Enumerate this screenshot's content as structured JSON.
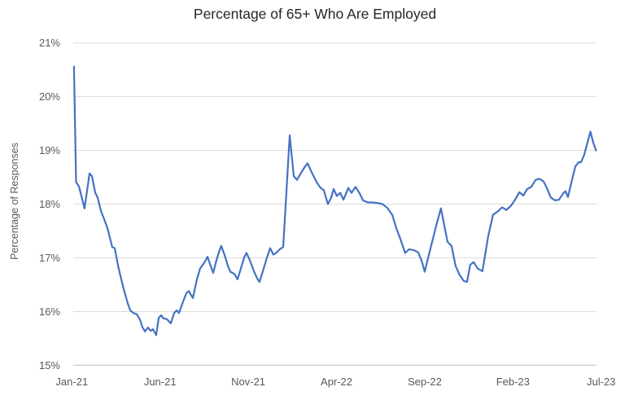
{
  "chart_data": {
    "type": "line",
    "title": "Percentage of 65+ Who Are Employed",
    "xlabel": "",
    "ylabel": "Percentage of Responses",
    "ylim": [
      15,
      21
    ],
    "xlim_months": [
      0,
      30
    ],
    "grid": "horizontal",
    "legend": "none",
    "colors": {
      "line": "#4472C4",
      "gridline": "#d9d9d9",
      "axis_line": "#bfbfbf",
      "tick_text": "#595959",
      "title_text": "#262626"
    },
    "y_ticks": [
      {
        "value": 15,
        "label": "15%"
      },
      {
        "value": 16,
        "label": "16%"
      },
      {
        "value": 17,
        "label": "17%"
      },
      {
        "value": 18,
        "label": "18%"
      },
      {
        "value": 19,
        "label": "19%"
      },
      {
        "value": 20,
        "label": "20%"
      },
      {
        "value": 21,
        "label": "21%"
      }
    ],
    "x_ticks": [
      {
        "month": 0,
        "label": "Jan-21"
      },
      {
        "month": 5,
        "label": "Jun-21"
      },
      {
        "month": 10,
        "label": "Nov-21"
      },
      {
        "month": 15,
        "label": "Apr-22"
      },
      {
        "month": 20,
        "label": "Sep-22"
      },
      {
        "month": 25,
        "label": "Feb-23"
      },
      {
        "month": 30,
        "label": "Jul-23"
      }
    ],
    "series": [
      {
        "x_unit": "months_since_Jan_2021",
        "y_unit": "percent",
        "points": [
          [
            0.12,
            20.56
          ],
          [
            0.24,
            18.41
          ],
          [
            0.4,
            18.33
          ],
          [
            0.72,
            17.92
          ],
          [
            1.0,
            18.57
          ],
          [
            1.14,
            18.52
          ],
          [
            1.32,
            18.22
          ],
          [
            1.46,
            18.12
          ],
          [
            1.65,
            17.87
          ],
          [
            1.83,
            17.72
          ],
          [
            2.02,
            17.55
          ],
          [
            2.15,
            17.38
          ],
          [
            2.29,
            17.2
          ],
          [
            2.43,
            17.18
          ],
          [
            2.62,
            16.85
          ],
          [
            2.8,
            16.6
          ],
          [
            2.94,
            16.42
          ],
          [
            3.17,
            16.15
          ],
          [
            3.31,
            16.02
          ],
          [
            3.49,
            15.97
          ],
          [
            3.68,
            15.95
          ],
          [
            3.86,
            15.85
          ],
          [
            4.0,
            15.71
          ],
          [
            4.14,
            15.63
          ],
          [
            4.32,
            15.7
          ],
          [
            4.46,
            15.64
          ],
          [
            4.6,
            15.67
          ],
          [
            4.78,
            15.56
          ],
          [
            4.92,
            15.88
          ],
          [
            5.06,
            15.93
          ],
          [
            5.2,
            15.87
          ],
          [
            5.38,
            15.86
          ],
          [
            5.61,
            15.78
          ],
          [
            5.8,
            15.97
          ],
          [
            5.94,
            16.02
          ],
          [
            6.07,
            15.97
          ],
          [
            6.3,
            16.18
          ],
          [
            6.49,
            16.34
          ],
          [
            6.63,
            16.38
          ],
          [
            6.86,
            16.25
          ],
          [
            7.09,
            16.6
          ],
          [
            7.27,
            16.8
          ],
          [
            7.55,
            16.93
          ],
          [
            7.69,
            17.02
          ],
          [
            7.83,
            16.88
          ],
          [
            8.01,
            16.72
          ],
          [
            8.19,
            16.95
          ],
          [
            8.38,
            17.15
          ],
          [
            8.47,
            17.22
          ],
          [
            8.66,
            17.05
          ],
          [
            8.84,
            16.85
          ],
          [
            8.98,
            16.74
          ],
          [
            9.21,
            16.7
          ],
          [
            9.39,
            16.6
          ],
          [
            9.58,
            16.8
          ],
          [
            9.76,
            17.0
          ],
          [
            9.9,
            17.09
          ],
          [
            10.09,
            16.95
          ],
          [
            10.32,
            16.75
          ],
          [
            10.5,
            16.62
          ],
          [
            10.64,
            16.55
          ],
          [
            10.87,
            16.8
          ],
          [
            11.05,
            17.0
          ],
          [
            11.24,
            17.18
          ],
          [
            11.42,
            17.06
          ],
          [
            11.61,
            17.1
          ],
          [
            11.79,
            17.16
          ],
          [
            11.98,
            17.2
          ],
          [
            12.35,
            19.28
          ],
          [
            12.58,
            18.52
          ],
          [
            12.76,
            18.45
          ],
          [
            12.99,
            18.58
          ],
          [
            13.18,
            18.68
          ],
          [
            13.36,
            18.76
          ],
          [
            13.55,
            18.62
          ],
          [
            13.73,
            18.5
          ],
          [
            13.92,
            18.38
          ],
          [
            14.1,
            18.3
          ],
          [
            14.28,
            18.26
          ],
          [
            14.51,
            18.0
          ],
          [
            14.7,
            18.12
          ],
          [
            14.84,
            18.28
          ],
          [
            15.02,
            18.15
          ],
          [
            15.21,
            18.21
          ],
          [
            15.39,
            18.08
          ],
          [
            15.67,
            18.3
          ],
          [
            15.85,
            18.21
          ],
          [
            16.08,
            18.32
          ],
          [
            16.31,
            18.2
          ],
          [
            16.5,
            18.07
          ],
          [
            16.77,
            18.03
          ],
          [
            17.05,
            18.03
          ],
          [
            17.33,
            18.02
          ],
          [
            17.6,
            18.0
          ],
          [
            17.88,
            17.93
          ],
          [
            18.16,
            17.8
          ],
          [
            18.39,
            17.55
          ],
          [
            18.62,
            17.35
          ],
          [
            18.89,
            17.09
          ],
          [
            19.12,
            17.16
          ],
          [
            19.4,
            17.14
          ],
          [
            19.63,
            17.1
          ],
          [
            19.82,
            16.95
          ],
          [
            20.0,
            16.74
          ],
          [
            20.23,
            17.05
          ],
          [
            20.46,
            17.35
          ],
          [
            20.69,
            17.65
          ],
          [
            20.92,
            17.92
          ],
          [
            21.11,
            17.6
          ],
          [
            21.29,
            17.3
          ],
          [
            21.52,
            17.22
          ],
          [
            21.75,
            16.85
          ],
          [
            21.98,
            16.68
          ],
          [
            22.21,
            16.57
          ],
          [
            22.4,
            16.55
          ],
          [
            22.58,
            16.87
          ],
          [
            22.77,
            16.92
          ],
          [
            23.0,
            16.8
          ],
          [
            23.27,
            16.75
          ],
          [
            23.6,
            17.4
          ],
          [
            23.87,
            17.8
          ],
          [
            24.16,
            17.87
          ],
          [
            24.39,
            17.94
          ],
          [
            24.62,
            17.89
          ],
          [
            24.89,
            17.97
          ],
          [
            25.12,
            18.08
          ],
          [
            25.36,
            18.22
          ],
          [
            25.59,
            18.16
          ],
          [
            25.81,
            18.28
          ],
          [
            26.04,
            18.32
          ],
          [
            26.28,
            18.45
          ],
          [
            26.51,
            18.47
          ],
          [
            26.74,
            18.42
          ],
          [
            26.92,
            18.3
          ],
          [
            27.15,
            18.12
          ],
          [
            27.38,
            18.07
          ],
          [
            27.61,
            18.08
          ],
          [
            27.85,
            18.2
          ],
          [
            27.98,
            18.24
          ],
          [
            28.12,
            18.13
          ],
          [
            28.35,
            18.45
          ],
          [
            28.54,
            18.7
          ],
          [
            28.72,
            18.78
          ],
          [
            28.86,
            18.78
          ],
          [
            29.04,
            18.92
          ],
          [
            29.23,
            19.15
          ],
          [
            29.39,
            19.35
          ],
          [
            29.55,
            19.15
          ],
          [
            29.71,
            19.0
          ]
        ]
      }
    ]
  }
}
